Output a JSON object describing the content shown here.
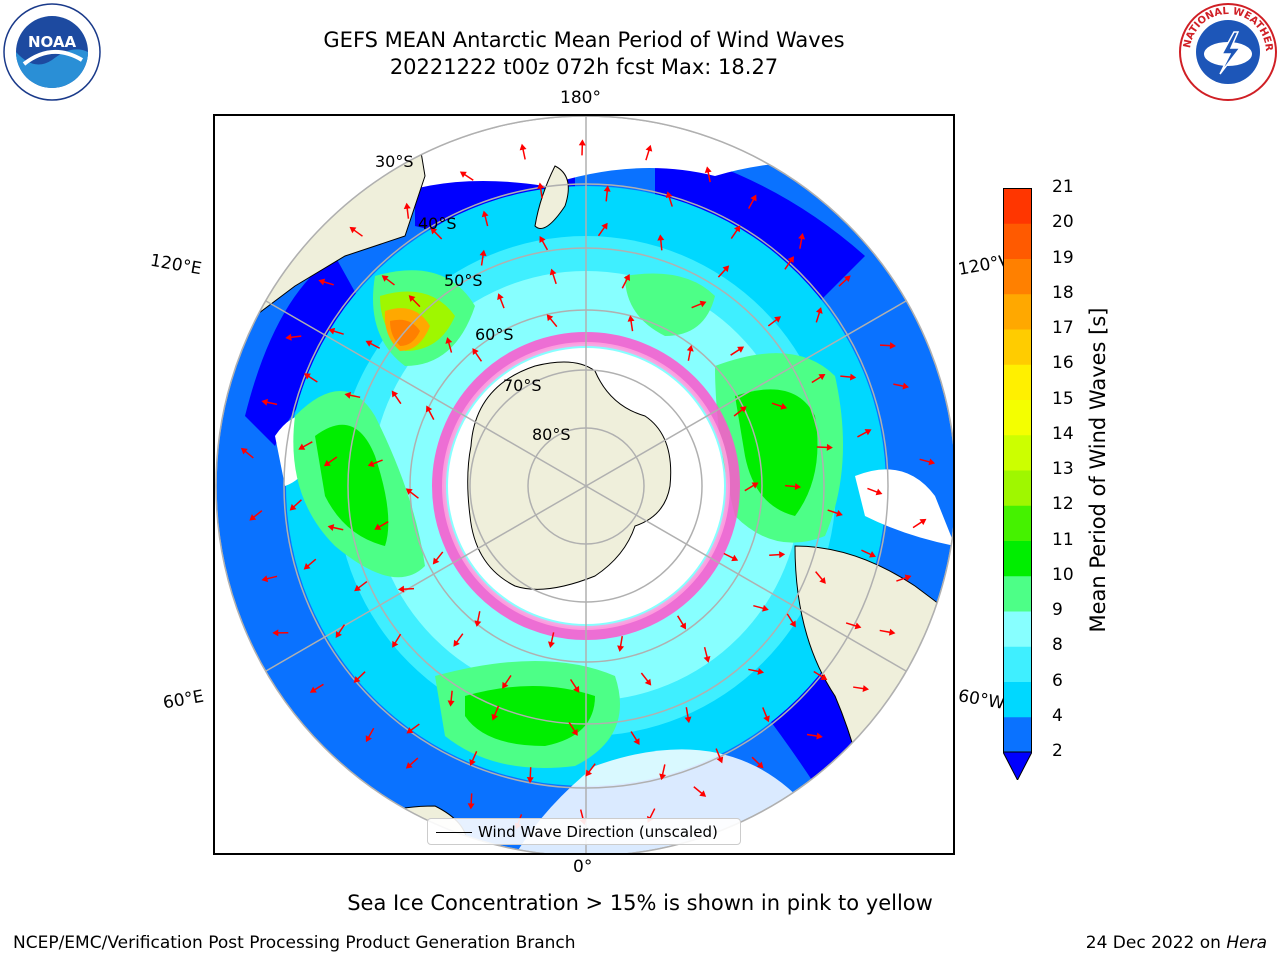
{
  "header": {
    "title_line1": "GEFS MEAN Antarctic Mean Period of Wind Waves",
    "title_line2": "20221222 t00z 072h fcst   Max: 18.27"
  },
  "logos": {
    "noaa_text": "NOAA",
    "nws_text": "NATIONAL WEATHER SERVICE"
  },
  "map": {
    "projection": "south-polar-stereographic",
    "lon_labels": {
      "top": "180°",
      "bottom": "0°",
      "upper_left": "120°E",
      "upper_right": "120°W",
      "lower_left": "60°E",
      "lower_right": "60°W"
    },
    "lat_labels": [
      "30°S",
      "40°S",
      "50°S",
      "60°S",
      "70°S",
      "80°S"
    ],
    "colors": {
      "land": "#efefdb",
      "coast": "#000000",
      "grid": "#b0b0b0",
      "arrow": "#ff0000",
      "sea_ice": "#ff55cc"
    }
  },
  "legend": {
    "label": "Wind Wave Direction (unscaled)"
  },
  "colorbar": {
    "label": "Mean Period of Wind Waves [s]",
    "ticks": [
      "21",
      "20",
      "19",
      "18",
      "17",
      "16",
      "15",
      "14",
      "13",
      "12",
      "11",
      "10",
      "9",
      "8",
      "6",
      "4",
      "2"
    ],
    "levels": [
      2,
      4,
      6,
      8,
      9,
      10,
      11,
      12,
      13,
      14,
      15,
      16,
      17,
      18,
      19,
      20,
      21
    ],
    "colors": [
      "#0a72ff",
      "#00d8ff",
      "#3fefff",
      "#87ffff",
      "#4dff87",
      "#00ee00",
      "#45f200",
      "#9ff700",
      "#ccff00",
      "#f4ff00",
      "#fff000",
      "#ffcc00",
      "#ffa800",
      "#ff8000",
      "#ff5a00",
      "#ff3600",
      "#ff0000"
    ],
    "under_color": "#0000ff"
  },
  "footer": {
    "caption": "Sea Ice Concentration > 15% is shown in pink to yellow",
    "credit": "NCEP/EMC/Verification Post Processing Product Generation Branch",
    "date": "24 Dec 2022 on ",
    "machine": "Hera"
  }
}
